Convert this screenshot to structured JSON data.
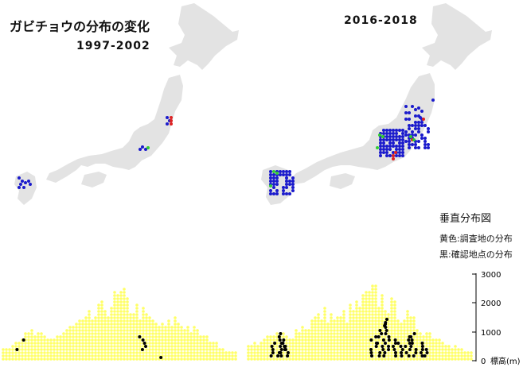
{
  "header": {
    "title": "ガビチョウの分布の変化",
    "period_left": "1997-2002",
    "period_right": "2016-2018"
  },
  "legend": {
    "vertical_title": "垂直分布図",
    "yellow_label": "黄色:調査地の分布",
    "black_label": "黒:確認地点の分布"
  },
  "elevation_axis": {
    "ticks": [
      "3000",
      "2000",
      "1000",
      "0"
    ],
    "unit_label": "標高(m)"
  },
  "colors": {
    "land": "#e3e3e3",
    "blue_marker": "#1a1acc",
    "red_marker": "#dd2222",
    "green_marker": "#33cc33",
    "survey_yellow": "#ffff66",
    "confirmed_black": "#000000"
  }
}
